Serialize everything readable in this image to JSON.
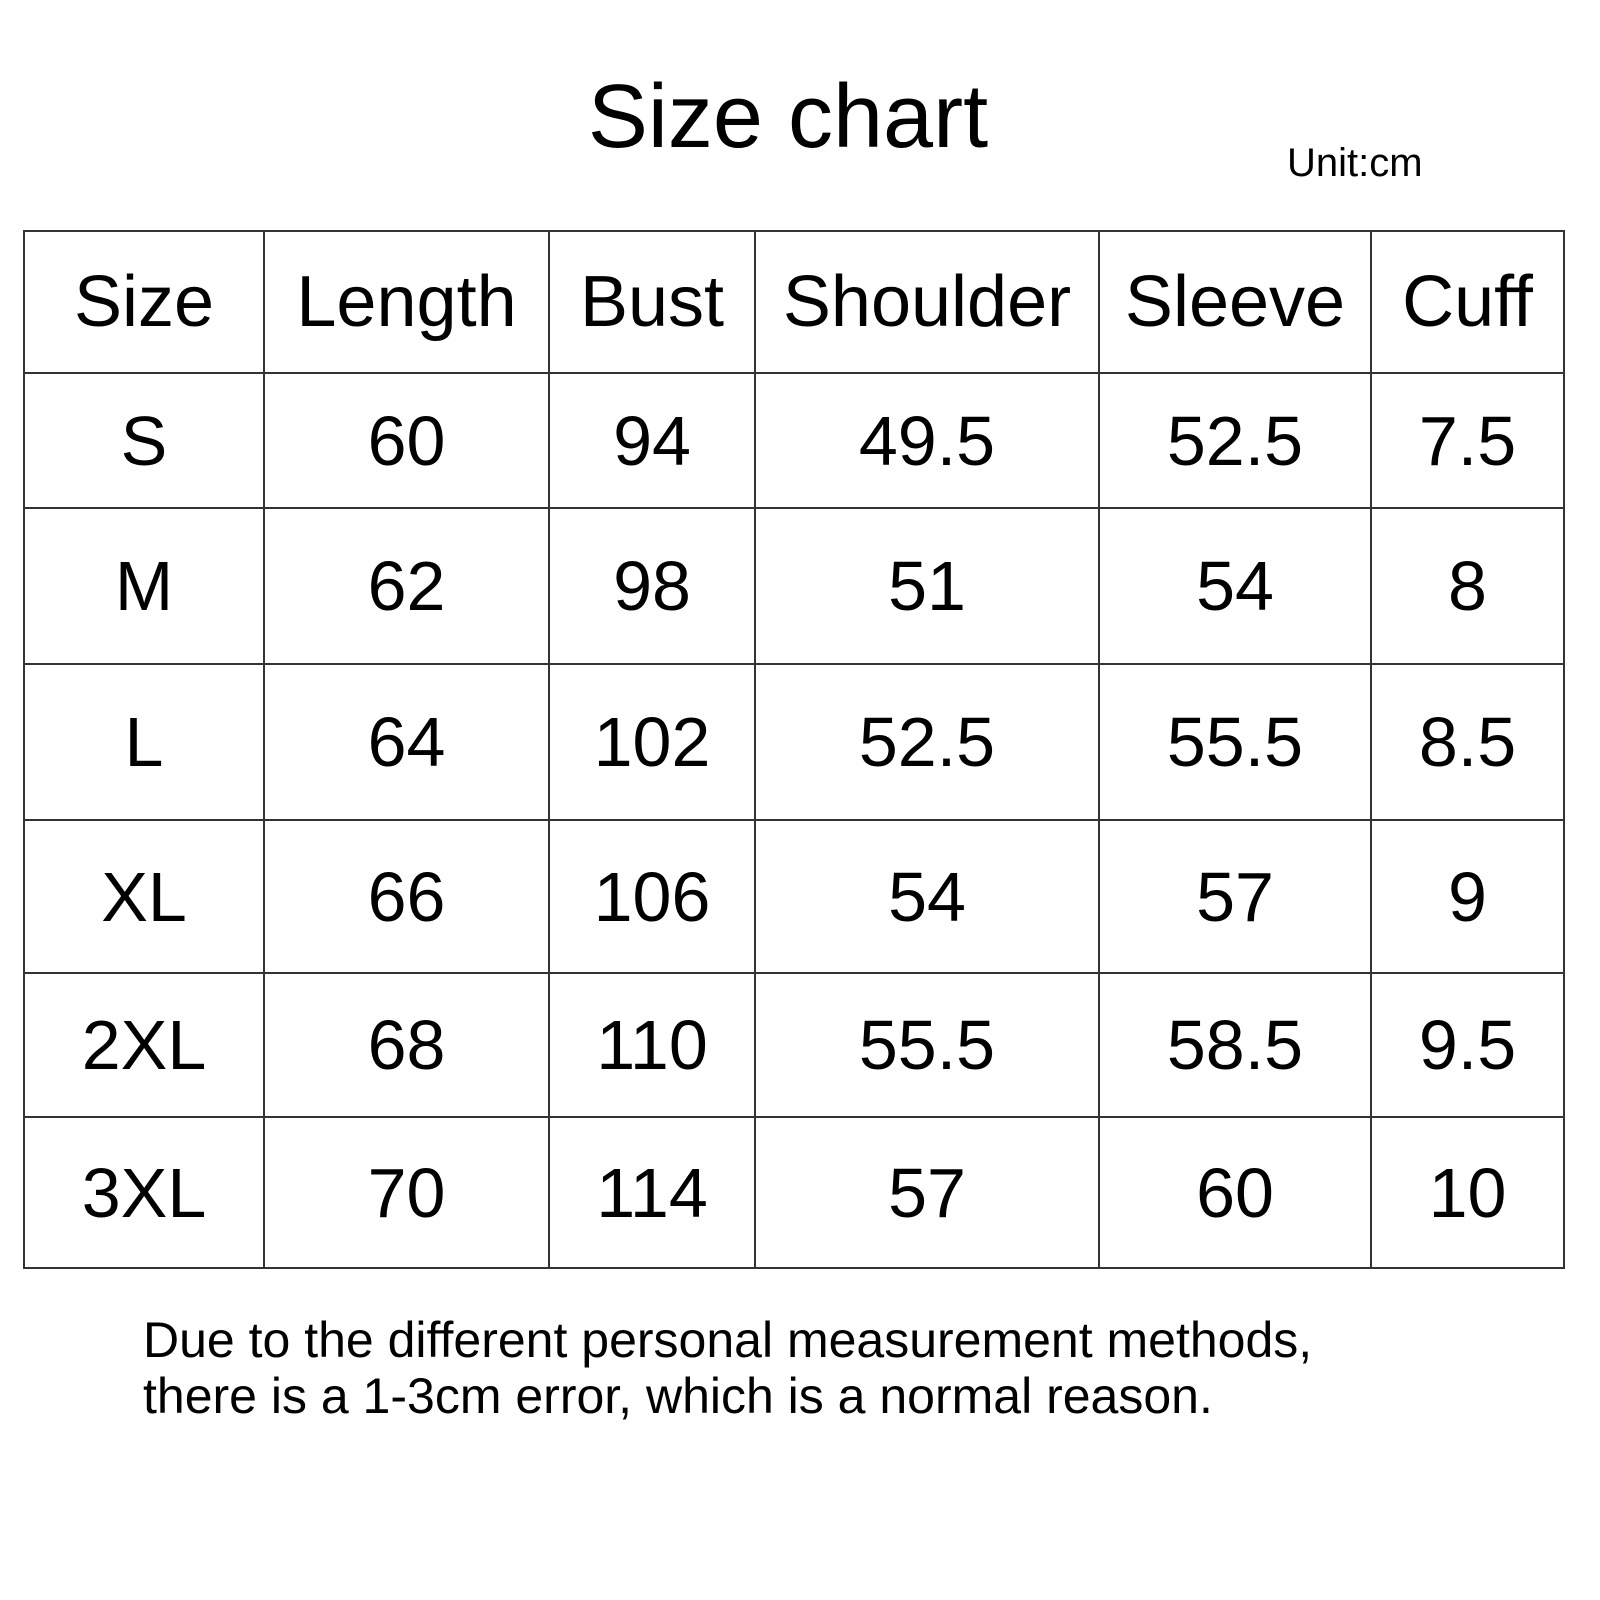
{
  "title": "Size chart",
  "unit": "Unit:cm",
  "table": {
    "headers": [
      "Size",
      "Length",
      "Bust",
      "Shoulder",
      "Sleeve",
      "Cuff"
    ],
    "rows": [
      [
        "S",
        "60",
        "94",
        "49.5",
        "52.5",
        "7.5"
      ],
      [
        "M",
        "62",
        "98",
        "51",
        "54",
        "8"
      ],
      [
        "L",
        "64",
        "102",
        "52.5",
        "55.5",
        "8.5"
      ],
      [
        "XL",
        "66",
        "106",
        "54",
        "57",
        "9"
      ],
      [
        "2XL",
        "68",
        "110",
        "55.5",
        "58.5",
        "9.5"
      ],
      [
        "3XL",
        "70",
        "114",
        "57",
        "60",
        "10"
      ]
    ]
  },
  "note": {
    "line1": "Due to the different personal measurement methods,",
    "line2": "there is a 1-3cm error, which is a normal reason."
  }
}
